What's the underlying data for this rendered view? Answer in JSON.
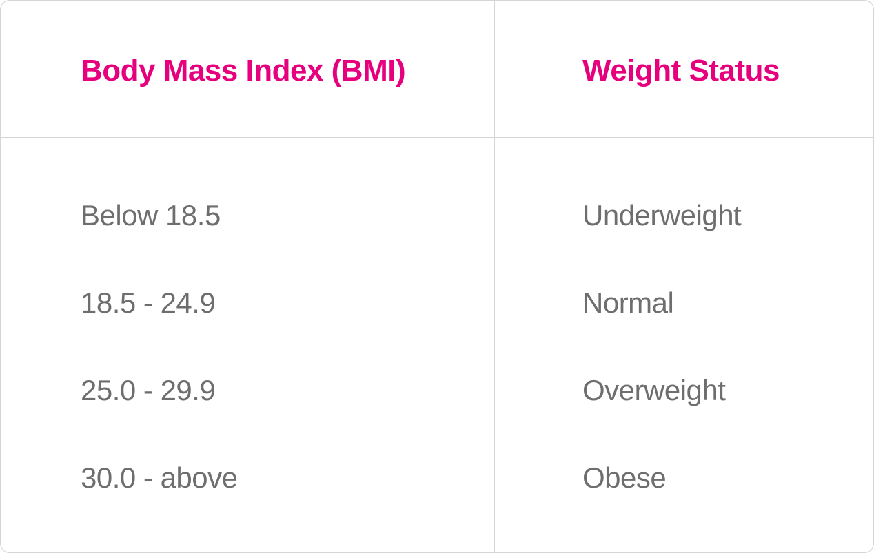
{
  "table": {
    "headers": [
      "Body Mass Index (BMI)",
      "Weight Status"
    ],
    "rows": [
      [
        "Below 18.5",
        "Underweight"
      ],
      [
        "18.5 - 24.9",
        "Normal"
      ],
      [
        "25.0 - 29.9",
        "Overweight"
      ],
      [
        "30.0 - above",
        "Obese"
      ]
    ]
  },
  "colors": {
    "header_text": "#e6007e",
    "body_text": "#6e6e6e",
    "border": "#d4d4d4",
    "background": "#ffffff"
  }
}
